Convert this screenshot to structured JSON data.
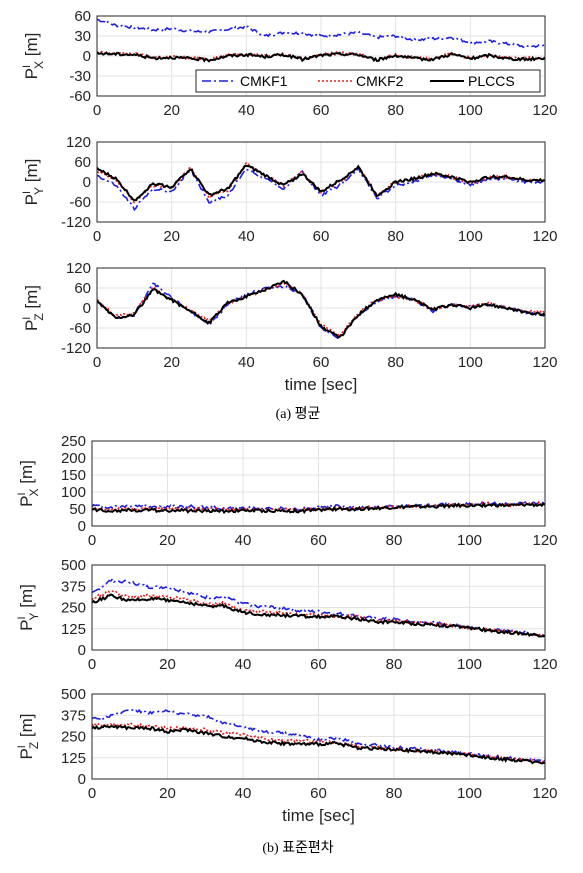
{
  "captions": {
    "a": "(a)  평균",
    "b": "(b)  표준편차"
  },
  "legend": [
    "CMKF1",
    "CMKF2",
    "PLCCS"
  ],
  "colors": {
    "CMKF1": "#1f1fe0",
    "CMKF2": "#e01f1f",
    "PLCCS": "#000000"
  },
  "chart_data": [
    {
      "type": "line",
      "id": "a1",
      "ylabel_main": "P",
      "ylabel_sup": "I",
      "ylabel_sub": "X",
      "ylabel_unit": "[m]",
      "xlim": [
        0,
        120
      ],
      "ylim": [
        -60,
        60
      ],
      "xticks": [
        "0",
        "20",
        "40",
        "60",
        "80",
        "100",
        "120"
      ],
      "yticks": [
        "60",
        "30",
        "0",
        "-30",
        "-60"
      ],
      "grid": true,
      "legend": "bottom-right",
      "xlabel": "",
      "x": [
        0,
        5,
        10,
        15,
        20,
        25,
        30,
        35,
        40,
        45,
        50,
        55,
        60,
        65,
        70,
        75,
        80,
        85,
        90,
        95,
        100,
        105,
        110,
        115,
        120
      ],
      "series": [
        {
          "name": "CMKF1",
          "values": [
            55,
            46,
            43,
            39,
            41,
            37,
            36,
            40,
            44,
            30,
            35,
            34,
            30,
            32,
            35,
            28,
            30,
            24,
            26,
            28,
            20,
            22,
            18,
            14,
            16
          ]
        },
        {
          "name": "CMKF2",
          "values": [
            5,
            4,
            3,
            -2,
            -1,
            -3,
            -5,
            2,
            3,
            0,
            3,
            -4,
            2,
            4,
            3,
            -5,
            2,
            -3,
            -4,
            4,
            -3,
            2,
            -3,
            -4,
            -2
          ]
        },
        {
          "name": "PLCCS",
          "values": [
            4,
            3,
            2,
            -3,
            -2,
            -4,
            -6,
            0,
            2,
            -1,
            2,
            -5,
            1,
            3,
            2,
            -6,
            1,
            -4,
            -5,
            3,
            -4,
            1,
            -4,
            -5,
            -3
          ]
        }
      ]
    },
    {
      "type": "line",
      "id": "a2",
      "ylabel_main": "P",
      "ylabel_sup": "I",
      "ylabel_sub": "Y",
      "ylabel_unit": "[m]",
      "xlim": [
        0,
        120
      ],
      "ylim": [
        -120,
        120
      ],
      "xticks": [
        "0",
        "20",
        "40",
        "60",
        "80",
        "100",
        "120"
      ],
      "yticks": [
        "120",
        "60",
        "0",
        "-60",
        "-120"
      ],
      "grid": true,
      "xlabel": "",
      "x": [
        0,
        5,
        10,
        15,
        20,
        25,
        30,
        35,
        40,
        45,
        50,
        55,
        60,
        65,
        70,
        75,
        80,
        85,
        90,
        95,
        100,
        105,
        110,
        115,
        120
      ],
      "series": [
        {
          "name": "CMKF1",
          "values": [
            20,
            -10,
            -80,
            -20,
            -30,
            40,
            -60,
            -40,
            40,
            10,
            -20,
            30,
            -40,
            -10,
            40,
            -50,
            -10,
            0,
            20,
            10,
            -10,
            10,
            10,
            0,
            0
          ]
        },
        {
          "name": "CMKF2",
          "values": [
            30,
            10,
            -60,
            -10,
            -20,
            45,
            -45,
            -25,
            55,
            20,
            -10,
            30,
            -30,
            0,
            45,
            -40,
            0,
            10,
            25,
            15,
            -5,
            15,
            15,
            5,
            5
          ]
        },
        {
          "name": "PLCCS",
          "values": [
            40,
            10,
            -55,
            -5,
            -15,
            40,
            -40,
            -20,
            50,
            20,
            -10,
            25,
            -30,
            5,
            45,
            -40,
            0,
            10,
            25,
            15,
            0,
            15,
            15,
            5,
            5
          ]
        }
      ]
    },
    {
      "type": "line",
      "id": "a3",
      "ylabel_main": "P",
      "ylabel_sup": "I",
      "ylabel_sub": "Z",
      "ylabel_unit": "[m]",
      "xlim": [
        0,
        120
      ],
      "ylim": [
        -120,
        120
      ],
      "xticks": [
        "0",
        "20",
        "40",
        "60",
        "80",
        "100",
        "120"
      ],
      "yticks": [
        "120",
        "60",
        "0",
        "-60",
        "-120"
      ],
      "grid": true,
      "xlabel": "time [sec]",
      "x": [
        0,
        5,
        10,
        15,
        20,
        25,
        30,
        35,
        40,
        45,
        50,
        55,
        60,
        65,
        70,
        75,
        80,
        85,
        90,
        95,
        100,
        105,
        110,
        115,
        120
      ],
      "series": [
        {
          "name": "CMKF1",
          "values": [
            20,
            -30,
            -20,
            75,
            30,
            -10,
            -50,
            10,
            40,
            60,
            65,
            40,
            -60,
            -90,
            -20,
            20,
            35,
            25,
            -10,
            10,
            5,
            10,
            0,
            -15,
            -20
          ]
        },
        {
          "name": "CMKF2",
          "values": [
            25,
            -25,
            -15,
            60,
            25,
            -5,
            -40,
            15,
            35,
            55,
            75,
            45,
            -50,
            -85,
            -15,
            25,
            35,
            25,
            -5,
            10,
            5,
            15,
            0,
            -10,
            -15
          ]
        },
        {
          "name": "PLCCS",
          "values": [
            20,
            -30,
            -20,
            55,
            25,
            -10,
            -45,
            15,
            35,
            55,
            80,
            40,
            -55,
            -90,
            -20,
            25,
            40,
            25,
            -5,
            10,
            0,
            10,
            0,
            -15,
            -20
          ]
        }
      ]
    },
    {
      "type": "line",
      "id": "b1",
      "ylabel_main": "P",
      "ylabel_sup": "I",
      "ylabel_sub": "X",
      "ylabel_unit": "[m]",
      "xlim": [
        0,
        120
      ],
      "ylim": [
        0,
        250
      ],
      "xticks": [
        "0",
        "20",
        "40",
        "60",
        "80",
        "100",
        "120"
      ],
      "yticks": [
        "250",
        "200",
        "150",
        "100",
        "50",
        "0"
      ],
      "grid": true,
      "xlabel": "",
      "x": [
        0,
        5,
        10,
        15,
        20,
        25,
        30,
        35,
        40,
        45,
        50,
        55,
        60,
        65,
        70,
        75,
        80,
        85,
        90,
        95,
        100,
        105,
        110,
        115,
        120
      ],
      "series": [
        {
          "name": "CMKF1",
          "values": [
            60,
            55,
            60,
            58,
            57,
            58,
            55,
            52,
            53,
            50,
            52,
            50,
            55,
            58,
            52,
            55,
            58,
            60,
            60,
            65,
            63,
            68,
            65,
            68,
            70
          ]
        },
        {
          "name": "CMKF2",
          "values": [
            50,
            48,
            50,
            50,
            52,
            50,
            50,
            48,
            48,
            48,
            48,
            47,
            50,
            52,
            52,
            55,
            56,
            58,
            58,
            62,
            62,
            65,
            62,
            65,
            66
          ]
        },
        {
          "name": "PLCCS",
          "values": [
            48,
            45,
            47,
            46,
            46,
            45,
            45,
            44,
            46,
            45,
            45,
            44,
            47,
            50,
            50,
            52,
            55,
            57,
            57,
            60,
            60,
            62,
            60,
            63,
            62
          ]
        }
      ]
    },
    {
      "type": "line",
      "id": "b2",
      "ylabel_main": "P",
      "ylabel_sup": "I",
      "ylabel_sub": "Y",
      "ylabel_unit": "[m]",
      "xlim": [
        0,
        120
      ],
      "ylim": [
        0,
        500
      ],
      "xticks": [
        "0",
        "20",
        "40",
        "60",
        "80",
        "100",
        "120"
      ],
      "yticks": [
        "500",
        "375",
        "250",
        "125",
        "0"
      ],
      "grid": true,
      "xlabel": "",
      "x": [
        0,
        5,
        10,
        15,
        20,
        25,
        30,
        35,
        40,
        45,
        50,
        55,
        60,
        65,
        70,
        75,
        80,
        85,
        90,
        95,
        100,
        105,
        110,
        115,
        120
      ],
      "series": [
        {
          "name": "CMKF1",
          "values": [
            330,
            410,
            400,
            370,
            370,
            340,
            310,
            310,
            275,
            255,
            250,
            230,
            225,
            215,
            200,
            185,
            180,
            165,
            160,
            150,
            135,
            120,
            110,
            100,
            85
          ]
        },
        {
          "name": "CMKF2",
          "values": [
            300,
            350,
            310,
            320,
            310,
            300,
            270,
            275,
            230,
            225,
            220,
            205,
            205,
            200,
            195,
            170,
            175,
            160,
            155,
            145,
            130,
            120,
            105,
            95,
            85
          ]
        },
        {
          "name": "PLCCS",
          "values": [
            280,
            320,
            290,
            300,
            295,
            280,
            260,
            260,
            220,
            210,
            205,
            200,
            195,
            195,
            185,
            165,
            165,
            155,
            150,
            140,
            130,
            115,
            105,
            95,
            85
          ]
        }
      ]
    },
    {
      "type": "line",
      "id": "b3",
      "ylabel_main": "P",
      "ylabel_sup": "I",
      "ylabel_sub": "Z",
      "ylabel_unit": "[m]",
      "xlim": [
        0,
        120
      ],
      "ylim": [
        0,
        500
      ],
      "xticks": [
        "0",
        "20",
        "40",
        "60",
        "80",
        "100",
        "120"
      ],
      "yticks": [
        "500",
        "375",
        "250",
        "125",
        "0"
      ],
      "grid": true,
      "xlabel": "time [sec]",
      "x": [
        0,
        5,
        10,
        15,
        20,
        25,
        30,
        35,
        40,
        45,
        50,
        55,
        60,
        65,
        70,
        75,
        80,
        85,
        90,
        95,
        100,
        105,
        110,
        115,
        120
      ],
      "series": [
        {
          "name": "CMKF1",
          "values": [
            350,
            370,
            410,
            390,
            400,
            380,
            370,
            330,
            310,
            280,
            270,
            260,
            230,
            240,
            210,
            200,
            185,
            180,
            170,
            160,
            150,
            135,
            125,
            115,
            105
          ]
        },
        {
          "name": "CMKF2",
          "values": [
            320,
            320,
            320,
            310,
            300,
            300,
            290,
            270,
            260,
            240,
            225,
            225,
            220,
            215,
            190,
            185,
            175,
            170,
            165,
            155,
            145,
            130,
            120,
            110,
            100
          ]
        },
        {
          "name": "PLCCS",
          "values": [
            300,
            310,
            300,
            300,
            280,
            290,
            270,
            250,
            240,
            220,
            210,
            205,
            205,
            210,
            185,
            180,
            170,
            165,
            160,
            150,
            140,
            125,
            115,
            105,
            95
          ]
        }
      ]
    }
  ]
}
